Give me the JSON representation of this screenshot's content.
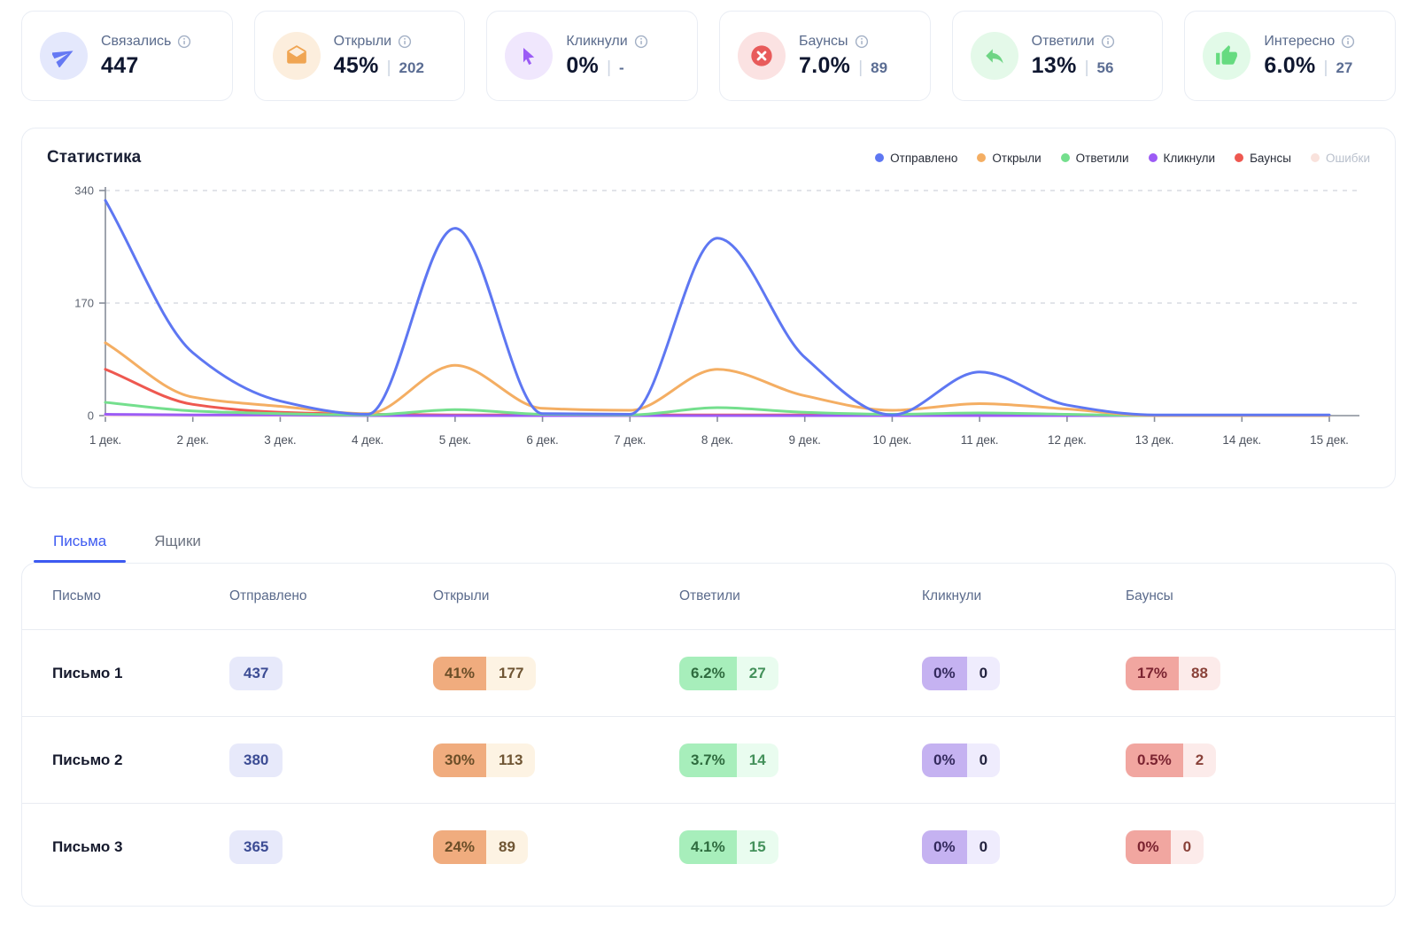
{
  "stats": {
    "cards": [
      {
        "label": "Связались",
        "value": "447",
        "sep": "",
        "sub": "",
        "icon": "send-icon"
      },
      {
        "label": "Открыли",
        "value": "45%",
        "sep": "|",
        "sub": "202",
        "icon": "open-envelope-icon"
      },
      {
        "label": "Кликнули",
        "value": "0%",
        "sep": "|",
        "sub": "-",
        "icon": "cursor-icon"
      },
      {
        "label": "Баунсы",
        "value": "7.0%",
        "sep": "|",
        "sub": "89",
        "icon": "x-circle-icon"
      },
      {
        "label": "Ответили",
        "value": "13%",
        "sep": "|",
        "sub": "56",
        "icon": "reply-icon"
      },
      {
        "label": "Интересно",
        "value": "6.0%",
        "sep": "|",
        "sub": "27",
        "icon": "thumbs-up-icon"
      }
    ]
  },
  "chart": {
    "title": "Статистика"
  },
  "chart_data": {
    "type": "line",
    "title": "Статистика",
    "x": [
      "1 дек.",
      "2 дек.",
      "3 дек.",
      "4 дек.",
      "5 дек.",
      "6 дек.",
      "7 дек.",
      "8 дек.",
      "9 дек.",
      "10 дек.",
      "11 дек.",
      "12 дек.",
      "13 дек.",
      "14 дек.",
      "15 дек."
    ],
    "ylim": [
      0,
      340
    ],
    "yticks": [
      0,
      170,
      340
    ],
    "grid": "dashed-horizontal",
    "legend_position": "top-right",
    "series": [
      {
        "name": "Отправлено",
        "color": "#5E77F2",
        "values": [
          325,
          95,
          22,
          2,
          283,
          3,
          2,
          268,
          88,
          1,
          66,
          16,
          1,
          1,
          1
        ]
      },
      {
        "name": "Открыли",
        "color": "#F4AE63",
        "values": [
          110,
          28,
          14,
          3,
          76,
          11,
          8,
          70,
          30,
          8,
          18,
          10,
          0,
          0,
          0
        ]
      },
      {
        "name": "Ответили",
        "color": "#74DF8D",
        "values": [
          20,
          7,
          3,
          1,
          9,
          2,
          1,
          12,
          5,
          2,
          4,
          2,
          0,
          0,
          0
        ]
      },
      {
        "name": "Кликнули",
        "color": "#9C5BF5",
        "values": [
          2,
          1,
          1,
          0,
          0,
          0,
          0,
          0,
          0,
          0,
          0,
          0,
          0,
          0,
          0
        ]
      },
      {
        "name": "Баунсы",
        "color": "#EE5850",
        "values": [
          70,
          17,
          5,
          2,
          1,
          1,
          1,
          1,
          1,
          1,
          1,
          1,
          0,
          0,
          0
        ]
      },
      {
        "name": "Ошибки",
        "color": "#F9E2DC",
        "values": [
          0,
          0,
          0,
          0,
          0,
          0,
          0,
          0,
          0,
          0,
          0,
          0,
          0,
          0,
          0
        ],
        "muted": true
      }
    ]
  },
  "tabs": [
    {
      "label": "Письма"
    },
    {
      "label": "Ящики"
    }
  ],
  "table": {
    "headers": [
      "Письмо",
      "Отправлено",
      "Открыли",
      "Ответили",
      "Кликнули",
      "Баунсы"
    ],
    "rows": [
      {
        "name": "Письмо 1",
        "sent": "437",
        "opened_pct": "41%",
        "opened_n": "177",
        "replied_pct": "6.2%",
        "replied_n": "27",
        "clicked_pct": "0%",
        "clicked_n": "0",
        "bounced_pct": "17%",
        "bounced_n": "88"
      },
      {
        "name": "Письмо 2",
        "sent": "380",
        "opened_pct": "30%",
        "opened_n": "113",
        "replied_pct": "3.7%",
        "replied_n": "14",
        "clicked_pct": "0%",
        "clicked_n": "0",
        "bounced_pct": "0.5%",
        "bounced_n": "2"
      },
      {
        "name": "Письмо 3",
        "sent": "365",
        "opened_pct": "24%",
        "opened_n": "89",
        "replied_pct": "4.1%",
        "replied_n": "15",
        "clicked_pct": "0%",
        "clicked_n": "0",
        "bounced_pct": "0%",
        "bounced_n": "0"
      }
    ]
  }
}
